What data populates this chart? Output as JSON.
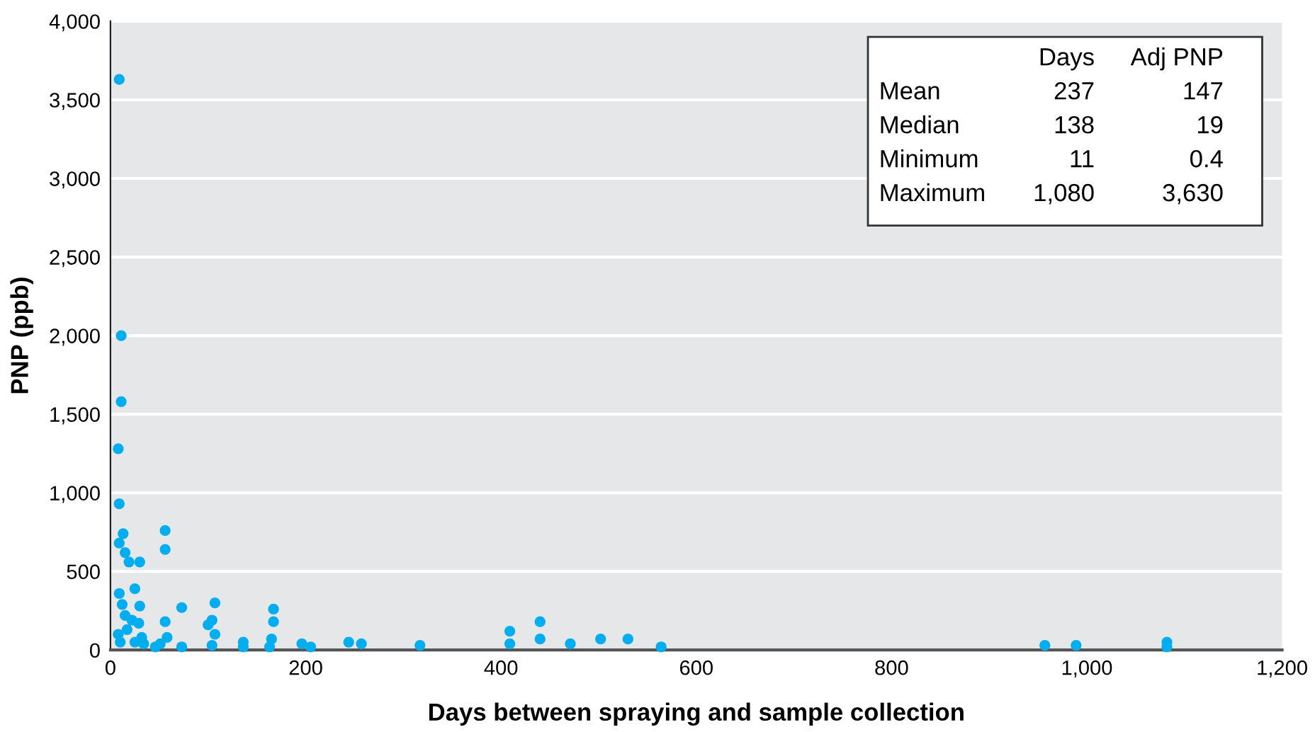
{
  "chart_data": {
    "type": "scatter",
    "xlabel": "Days between spraying and sample collection",
    "ylabel": "PNP (ppb)",
    "x": [
      9,
      11,
      11,
      8,
      9,
      13,
      9,
      15,
      19,
      30,
      56,
      56,
      9,
      25,
      12,
      30,
      73,
      107,
      167,
      167,
      104,
      100,
      107,
      56,
      15,
      22,
      29,
      17,
      8,
      32,
      10,
      25,
      34,
      58,
      51,
      46,
      73,
      104,
      136,
      136,
      165,
      163,
      196,
      205,
      244,
      257,
      317,
      409,
      409,
      440,
      440,
      471,
      502,
      530,
      564,
      957,
      989,
      1082,
      1082
    ],
    "values": [
      3630,
      2000,
      1580,
      1280,
      930,
      740,
      680,
      620,
      560,
      560,
      760,
      640,
      360,
      390,
      290,
      280,
      270,
      300,
      260,
      180,
      190,
      160,
      100,
      180,
      220,
      190,
      170,
      130,
      100,
      80,
      50,
      50,
      40,
      80,
      40,
      20,
      20,
      30,
      50,
      20,
      70,
      20,
      40,
      20,
      50,
      40,
      30,
      120,
      40,
      180,
      70,
      40,
      70,
      70,
      20,
      30,
      30,
      50,
      20
    ],
    "color": "#00aeef",
    "marker": "circle",
    "grid": "y",
    "xlim": [
      0,
      1200
    ],
    "xticks": [
      0,
      200,
      400,
      600,
      800,
      {
        "value": 1000,
        "label": "1,000"
      },
      {
        "value": 1200,
        "label": "1,200"
      }
    ],
    "ylim": [
      0,
      4000
    ],
    "yticks": [
      0,
      500,
      {
        "value": 1000,
        "label": "1,000"
      },
      {
        "value": 1500,
        "label": "1,500"
      },
      {
        "value": 2000,
        "label": "2,000"
      },
      {
        "value": 2500,
        "label": "2,500"
      },
      {
        "value": 3000,
        "label": "3,000"
      },
      {
        "value": 3500,
        "label": "3,500"
      },
      {
        "value": 4000,
        "label": "4,000"
      }
    ],
    "annotations": [
      "Days",
      "Adj PNP",
      "Mean",
      "237",
      "147",
      "Median",
      "138",
      "19",
      "Minimum",
      "11",
      "0.4",
      "Maximum",
      "1,080",
      "3,630"
    ]
  }
}
